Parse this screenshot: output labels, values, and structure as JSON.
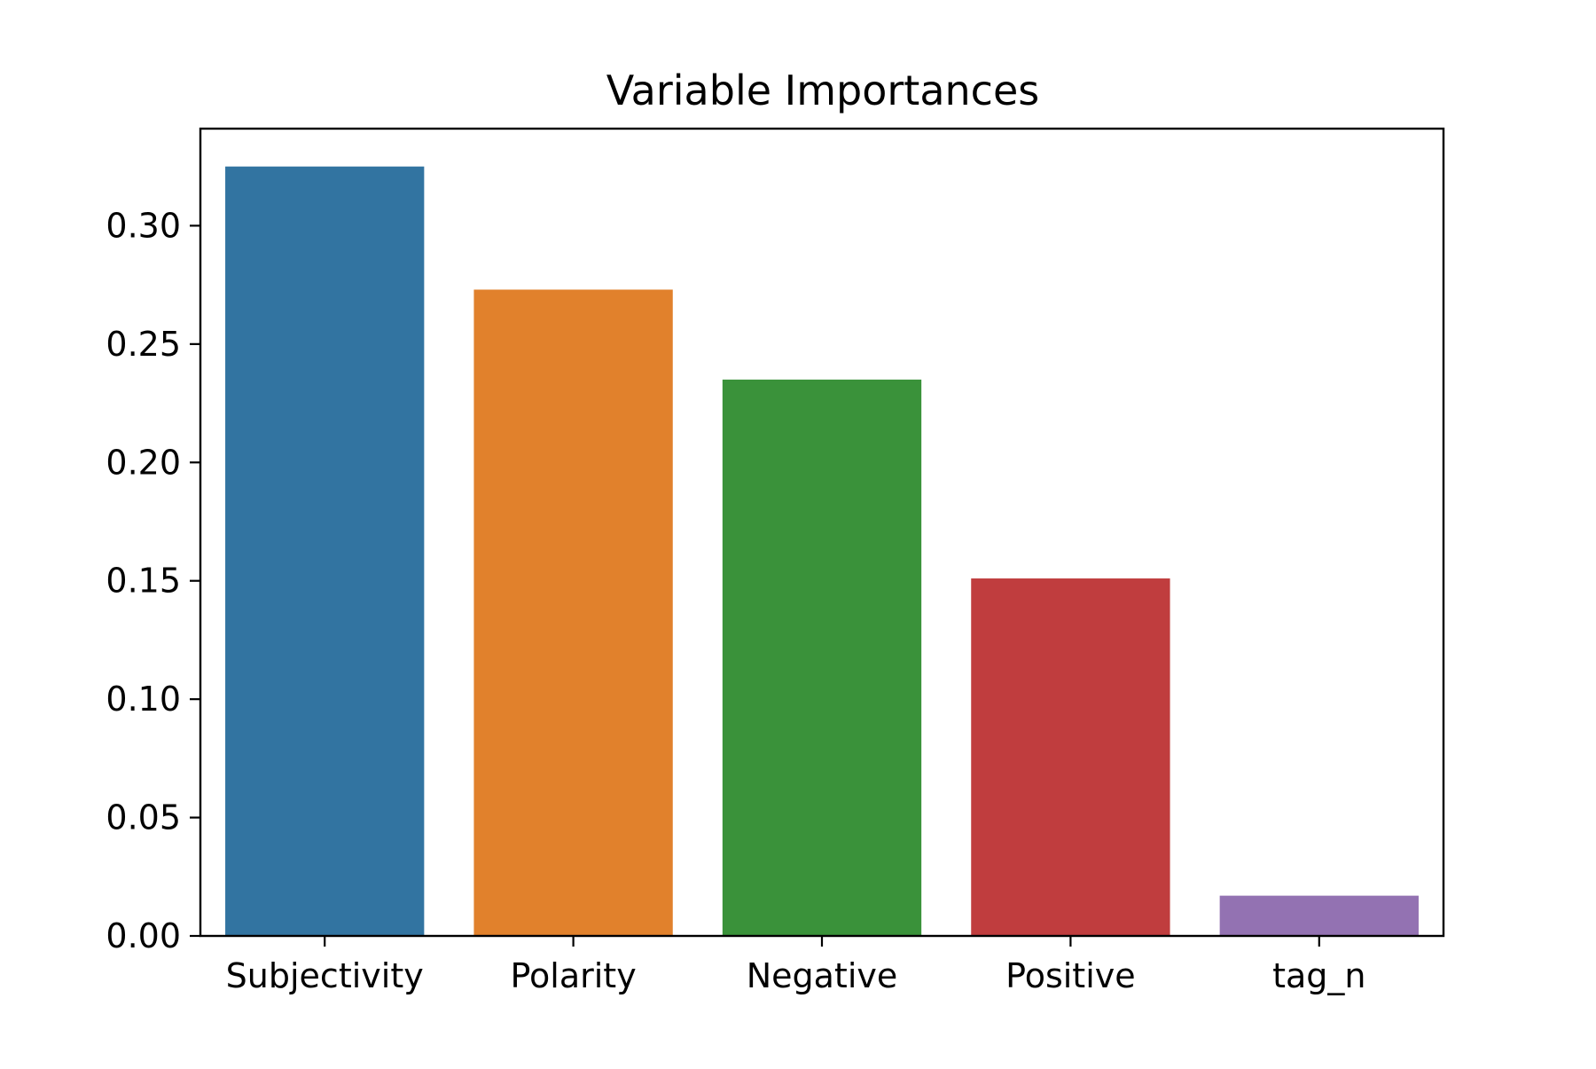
{
  "chart_data": {
    "type": "bar",
    "title": "Variable Importances",
    "xlabel": "",
    "ylabel": "",
    "categories": [
      "Subjectivity",
      "Polarity",
      "Negative",
      "Positive",
      "tag_n"
    ],
    "values": [
      0.325,
      0.273,
      0.235,
      0.151,
      0.017
    ],
    "colors": [
      "#3274a1",
      "#e1812c",
      "#3a923a",
      "#c03d3e",
      "#9372b2"
    ],
    "ylim": [
      0,
      0.341
    ],
    "yticks": [
      0.0,
      0.05,
      0.1,
      0.15,
      0.2,
      0.25,
      0.3
    ],
    "ytick_labels": [
      "0.00",
      "0.05",
      "0.10",
      "0.15",
      "0.20",
      "0.25",
      "0.30"
    ],
    "grid": false,
    "legend": "none"
  }
}
